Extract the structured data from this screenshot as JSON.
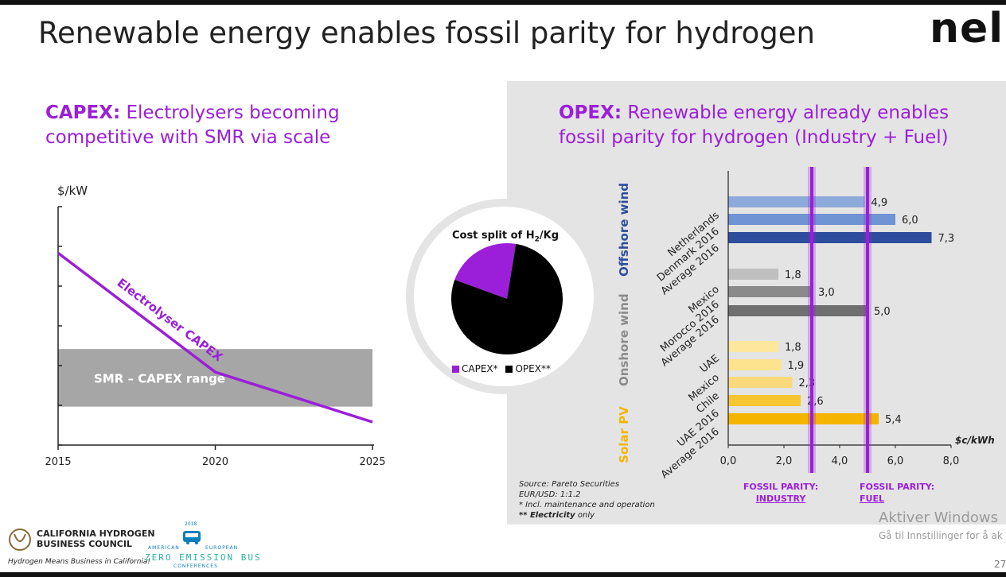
{
  "slide": {
    "title": "Renewable energy enables fossil parity for hydrogen",
    "logo": "nel",
    "page_number": "27"
  },
  "capex": {
    "heading_bold": "CAPEX:",
    "heading_rest_line1": "Electrolysers becoming",
    "heading_line2": "competitive with SMR via scale"
  },
  "opex": {
    "heading_bold": "OPEX:",
    "heading_rest_line1": "Renewable energy already enables",
    "heading_line2": "fossil parity for hydrogen (Industry + Fuel)"
  },
  "pie": {
    "title_prefix": "Cost split of H",
    "title_sub": "2",
    "title_suffix": "/Kg",
    "legend_capex": "CAPEX*",
    "legend_opex": "OPEX**"
  },
  "groups": {
    "offshore": "Offshore wind",
    "onshore": "Onshore wind",
    "solar": "Solar PV"
  },
  "parity": {
    "industry_line1": "FOSSIL PARITY:",
    "industry_line2": "INDUSTRY",
    "fuel_line1": "FOSSIL PARITY:",
    "fuel_line2": "FUEL"
  },
  "notes": {
    "line1": "Source: Pareto Securities",
    "line2": "EUR/USD: 1:1.2",
    "line3": "* Incl. maintenance and operation",
    "line4a": "** Electricity",
    "line4b": "only"
  },
  "footer": {
    "chbc_line1": "California Hydrogen",
    "chbc_line2": "Business Council",
    "chbc_tagline": "Hydrogen Means Business in California!",
    "bus_year": "2018",
    "bus_left": "AMERICAN",
    "bus_right": "EUROPEAN",
    "bus_main": "ZERO EMISSION BUS",
    "bus_sub": "CONFERENCES"
  },
  "watermark": {
    "line1": "Aktiver Windows",
    "line2": "Gå til Innstillinger for å ak"
  },
  "colors": {
    "accent": "#9b1fd9",
    "offshore": "#2e4d9c",
    "onshore": "#8a8a8a",
    "solar": "#f5b400"
  },
  "chart_data": [
    {
      "type": "line",
      "ylabel": "$/kW",
      "x": [
        2015,
        2020,
        2025
      ],
      "xticks": [
        "2015",
        "2020",
        "2025"
      ],
      "series": [
        {
          "name": "Electrolyser CAPEX",
          "x": [
            2015,
            2020,
            2025
          ],
          "values": [
            100,
            38,
            12
          ]
        }
      ],
      "band": {
        "label": "SMR – CAPEX range",
        "from": 20,
        "to": 50
      },
      "ylim": [
        0,
        120
      ],
      "xlim": [
        2015,
        2025
      ]
    },
    {
      "type": "pie",
      "title": "Cost split of H2/Kg",
      "slices": [
        {
          "name": "CAPEX*",
          "value": 22,
          "color": "#9b1fd9"
        },
        {
          "name": "OPEX**",
          "value": 78,
          "color": "#000000"
        }
      ]
    },
    {
      "type": "bar",
      "orientation": "horizontal",
      "xlabel": "$c/kWh",
      "xlim": [
        0,
        8
      ],
      "xticks": [
        "0,0",
        "2,0",
        "4,0",
        "6,0",
        "8,0"
      ],
      "categories": [
        "Netherlands",
        "Denmark 2016",
        "Average 2016",
        "Mexico",
        "Morocco 2016",
        "Average 2016",
        "UAE",
        "Mexico",
        "Chile",
        "UAE 2016",
        "Average 2016"
      ],
      "groups": [
        "Offshore wind",
        "Offshore wind",
        "Offshore wind",
        "Onshore wind",
        "Onshore wind",
        "Onshore wind",
        "Solar PV",
        "Solar PV",
        "Solar PV",
        "Solar PV",
        "Solar PV"
      ],
      "values": [
        4.9,
        6.0,
        7.3,
        1.8,
        3.0,
        5.0,
        1.8,
        1.9,
        2.3,
        2.6,
        5.4
      ],
      "labels": [
        "4,9",
        "6,0",
        "7,3",
        "1,8",
        "3,0",
        "5,0",
        "1,8",
        "1,9",
        "2,3",
        "2,6",
        "5,4"
      ],
      "colors": [
        "#8eaadb",
        "#6f93d3",
        "#2e4d9c",
        "#c0c0c0",
        "#8a8a8a",
        "#6f6f6f",
        "#fde79c",
        "#fde38d",
        "#fbd97a",
        "#f8c630",
        "#f5b400"
      ],
      "reference_lines": [
        {
          "name": "FOSSIL PARITY: INDUSTRY",
          "x": 3.0
        },
        {
          "name": "FOSSIL PARITY: FUEL",
          "x": 5.0
        }
      ]
    }
  ]
}
